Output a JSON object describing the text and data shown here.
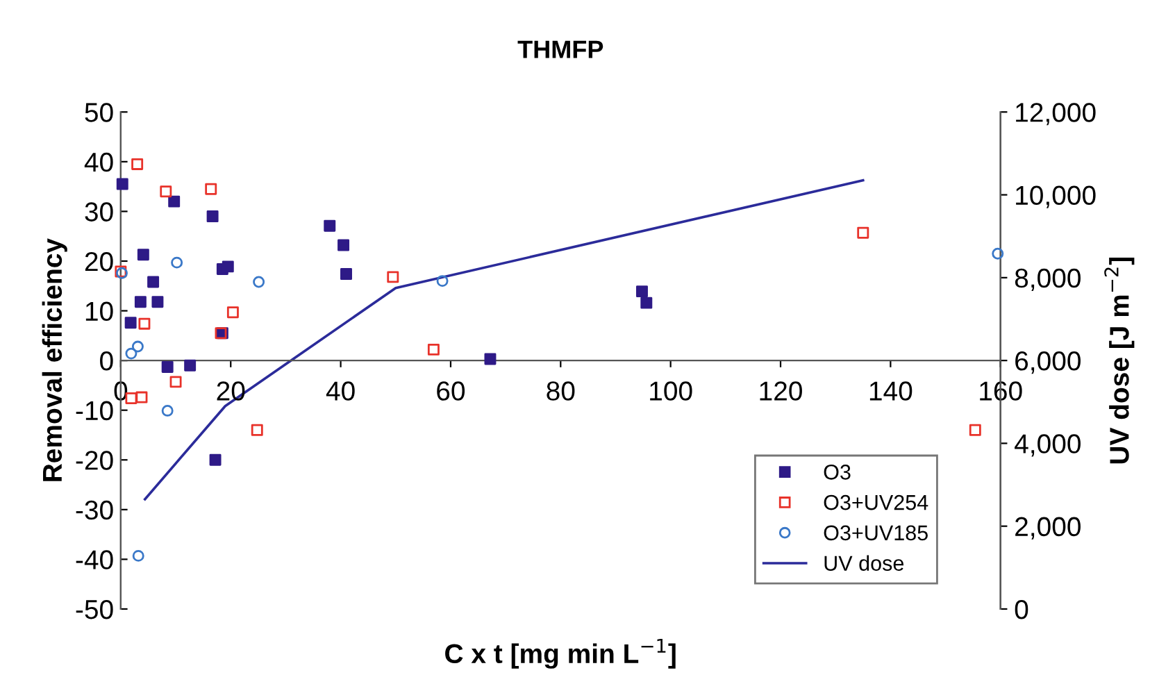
{
  "chart_data": {
    "type": "scatter",
    "title": "THMFP",
    "xlabel": "C x t [mg min L$^{−1}$]",
    "ylabel": "Removal efficiency",
    "y2label": "UV dose [J m$^{−2}$]",
    "xlim": [
      0,
      160
    ],
    "xticks": [
      0,
      20,
      40,
      60,
      80,
      100,
      120,
      140,
      160
    ],
    "ylim": [
      -50,
      50
    ],
    "yticks": [
      -50,
      -40,
      -30,
      -20,
      -10,
      0,
      10,
      20,
      30,
      40,
      50
    ],
    "y2lim": [
      0,
      12000
    ],
    "y2ticks": [
      {
        "value": 0,
        "label": "0"
      },
      {
        "value": 2000,
        "label": "2,000"
      },
      {
        "value": 4000,
        "label": "4,000"
      },
      {
        "value": 6000,
        "label": "6,000"
      },
      {
        "value": 8000,
        "label": "8,000"
      },
      {
        "value": 10000,
        "label": "10,000"
      },
      {
        "value": 12000,
        "label": "12,000"
      }
    ],
    "grid": false,
    "legend": "bottom right",
    "series": [
      {
        "name": "O3",
        "marker": "square",
        "color": "#2e1a87",
        "x": [
          0.3,
          9.7,
          16.7,
          4.1,
          5.9,
          3.6,
          6.7,
          1.8,
          18.5,
          18.5,
          19.5,
          38,
          40.5,
          41,
          94.8,
          95.6,
          67.2,
          8.5,
          12.6,
          17.2
        ],
        "values": [
          35.5,
          32,
          29,
          21.3,
          15.8,
          11.8,
          11.8,
          7.6,
          5.5,
          18.4,
          18.9,
          27.1,
          23.2,
          17.4,
          13.9,
          11.6,
          0.3,
          -1.3,
          -1,
          -20
        ]
      },
      {
        "name": "O3+UV254",
        "marker": "square",
        "color": "#e8322a",
        "x": [
          3,
          8.2,
          16.4,
          0,
          4.3,
          20.4,
          18.2,
          49.5,
          56.9,
          135,
          10,
          1.9,
          3.8,
          24.8,
          155.4
        ],
        "values": [
          39.5,
          34,
          34.5,
          17.9,
          7.4,
          9.7,
          5.5,
          16.8,
          2.2,
          25.7,
          -4.3,
          -7.6,
          -7.4,
          -14,
          -14
        ]
      },
      {
        "name": "O3+UV185",
        "marker": "circle",
        "color": "#3a78c8",
        "x": [
          0.2,
          10.2,
          25.1,
          1.9,
          3.1,
          8.5,
          3.2,
          58.5,
          159.5
        ],
        "values": [
          17.6,
          19.7,
          15.8,
          1.4,
          2.8,
          -10.1,
          -39.3,
          16,
          21.5
        ]
      },
      {
        "name": "UV dose",
        "type": "line",
        "axis": "y2",
        "marker": "none",
        "line_style": "solid",
        "color": "#2b2b9a",
        "x": [
          4.4,
          19,
          50,
          135
        ],
        "values": [
          2650,
          4900,
          7750,
          10350
        ]
      }
    ]
  }
}
